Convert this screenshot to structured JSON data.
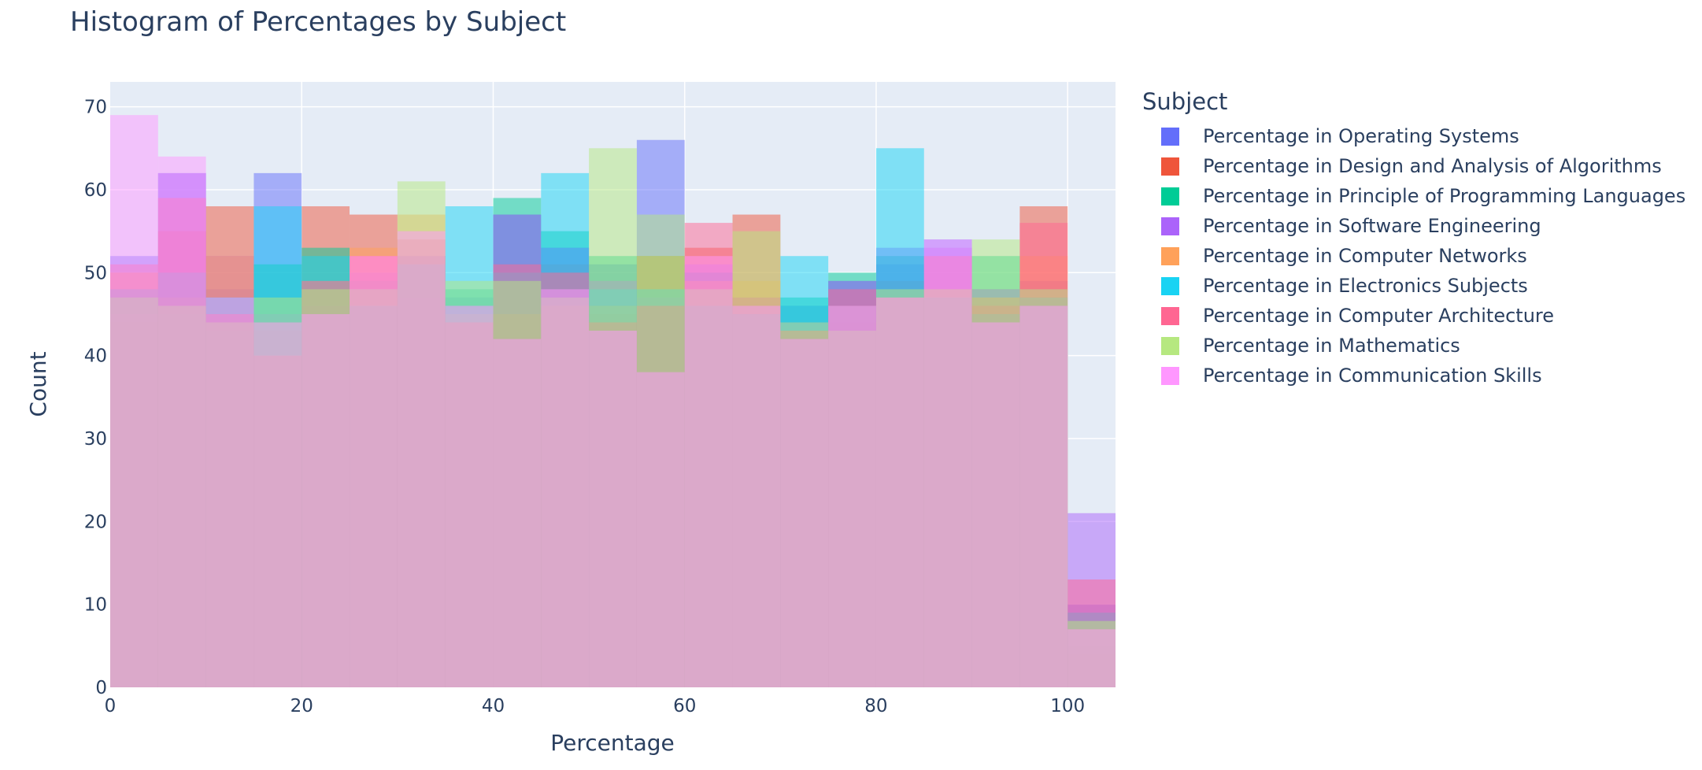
{
  "chart_data": {
    "type": "bar",
    "title": "Histogram of Percentages by Subject",
    "xlabel": "Percentage",
    "ylabel": "Count",
    "xlim": [
      0,
      105
    ],
    "ylim": [
      0,
      73
    ],
    "xticks": [
      0,
      20,
      40,
      60,
      80,
      100
    ],
    "yticks": [
      0,
      10,
      20,
      30,
      40,
      50,
      60,
      70
    ],
    "bin_width": 5,
    "bins": [
      0,
      5,
      10,
      15,
      20,
      25,
      30,
      35,
      40,
      45,
      50,
      55,
      60,
      65,
      70,
      75,
      80,
      85,
      90,
      95,
      100
    ],
    "barmode": "overlay",
    "grid": true,
    "legend_title": "Subject",
    "legend_position": "right",
    "series": [
      {
        "name": "Percentage in Operating Systems",
        "color": "#636efa",
        "values": [
          52,
          62,
          48,
          62,
          44,
          45,
          52,
          47,
          57,
          53,
          51,
          66,
          50,
          46,
          46,
          49,
          51,
          54,
          48,
          49,
          10
        ]
      },
      {
        "name": "Percentage in Design and Analysis of Algorithms",
        "color": "#ef553b",
        "values": [
          44,
          55,
          58,
          43,
          58,
          57,
          54,
          44,
          42,
          51,
          45,
          52,
          53,
          57,
          42,
          44,
          49,
          47,
          44,
          58,
          4
        ]
      },
      {
        "name": "Percentage in Principle of Programming Languages",
        "color": "#00cc96",
        "values": [
          47,
          45,
          43,
          51,
          53,
          49,
          52,
          48,
          59,
          55,
          52,
          52,
          50,
          46,
          47,
          50,
          52,
          48,
          52,
          46,
          5
        ]
      },
      {
        "name": "Percentage in Software Engineering",
        "color": "#ab63fa",
        "values": [
          45,
          62,
          52,
          45,
          46,
          50,
          47,
          46,
          57,
          53,
          49,
          47,
          51,
          47,
          44,
          49,
          53,
          53,
          48,
          48,
          21
        ]
      },
      {
        "name": "Percentage in Computer Networks",
        "color": "#ffa15a",
        "values": [
          50,
          47,
          52,
          44,
          49,
          53,
          57,
          45,
          45,
          46,
          46,
          52,
          49,
          49,
          43,
          46,
          47,
          48,
          47,
          52,
          7
        ]
      },
      {
        "name": "Percentage in Electronics Subjects",
        "color": "#19d3f3",
        "values": [
          48,
          50,
          47,
          58,
          52,
          46,
          51,
          58,
          50,
          62,
          48,
          48,
          46,
          45,
          52,
          46,
          65,
          47,
          45,
          47,
          9
        ]
      },
      {
        "name": "Percentage in Computer Architecture",
        "color": "#ff6692",
        "values": [
          51,
          59,
          45,
          40,
          49,
          52,
          52,
          44,
          51,
          50,
          44,
          46,
          56,
          47,
          43,
          48,
          47,
          52,
          46,
          56,
          13
        ]
      },
      {
        "name": "Percentage in Mathematics",
        "color": "#b6e880",
        "values": [
          47,
          46,
          44,
          47,
          48,
          48,
          61,
          49,
          49,
          47,
          65,
          57,
          48,
          55,
          44,
          43,
          48,
          48,
          54,
          48,
          8
        ]
      },
      {
        "name": "Percentage in Communication Skills",
        "color": "#ff97ff",
        "values": [
          69,
          64,
          47,
          44,
          45,
          52,
          55,
          46,
          42,
          48,
          43,
          38,
          52,
          46,
          42,
          46,
          47,
          54,
          44,
          46,
          7
        ]
      }
    ]
  }
}
